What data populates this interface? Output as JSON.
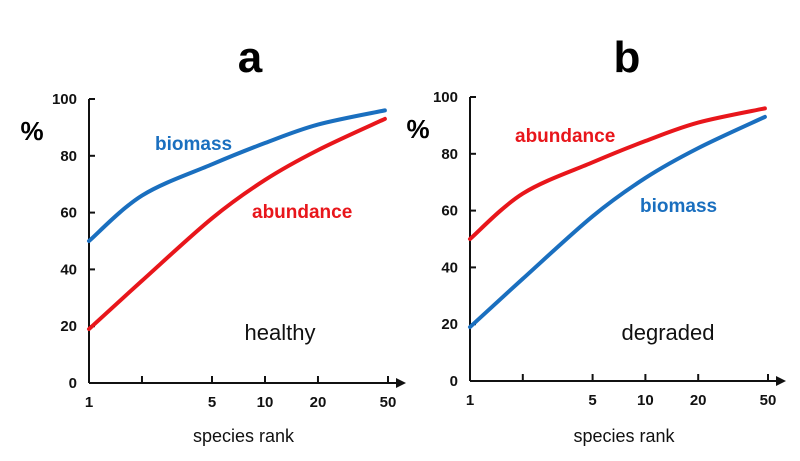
{
  "chart_data": [
    {
      "type": "line",
      "panel_label": "a",
      "condition": "healthy",
      "ylabel": "%",
      "xlabel": "species rank",
      "xscale": "log",
      "xlim": [
        1,
        50
      ],
      "ylim": [
        0,
        100
      ],
      "xticks": [
        1,
        2,
        5,
        10,
        20,
        50
      ],
      "xtick_labels": [
        "1",
        "",
        "5",
        "10",
        "20",
        "50"
      ],
      "yticks": [
        0,
        20,
        40,
        60,
        80,
        100
      ],
      "ytick_labels": [
        "0",
        "20",
        "40",
        "60",
        "80",
        "100"
      ],
      "grid": false,
      "x": [
        1,
        2,
        5,
        10,
        20,
        48
      ],
      "series": [
        {
          "name": "biomass",
          "color": "#1a6fbf",
          "values": [
            50,
            66,
            77,
            84.5,
            91,
            96
          ]
        },
        {
          "name": "abundance",
          "color": "#e8161b",
          "values": [
            19,
            36,
            58,
            71.5,
            82,
            93
          ]
        }
      ]
    },
    {
      "type": "line",
      "panel_label": "b",
      "condition": "degraded",
      "ylabel": "%",
      "xlabel": "species rank",
      "xscale": "log",
      "xlim": [
        1,
        50
      ],
      "ylim": [
        0,
        100
      ],
      "xticks": [
        1,
        2,
        5,
        10,
        20,
        50
      ],
      "xtick_labels": [
        "1",
        "",
        "5",
        "10",
        "20",
        "50"
      ],
      "yticks": [
        0,
        20,
        40,
        60,
        80,
        100
      ],
      "ytick_labels": [
        "0",
        "20",
        "40",
        "60",
        "80",
        "100"
      ],
      "grid": false,
      "x": [
        1,
        2,
        5,
        10,
        20,
        48
      ],
      "series": [
        {
          "name": "abundance",
          "color": "#e8161b",
          "values": [
            50,
            66,
            77,
            84.5,
            91,
            96
          ]
        },
        {
          "name": "biomass",
          "color": "#1a6fbf",
          "values": [
            19,
            36,
            58,
            71.5,
            82,
            93
          ]
        }
      ]
    }
  ]
}
